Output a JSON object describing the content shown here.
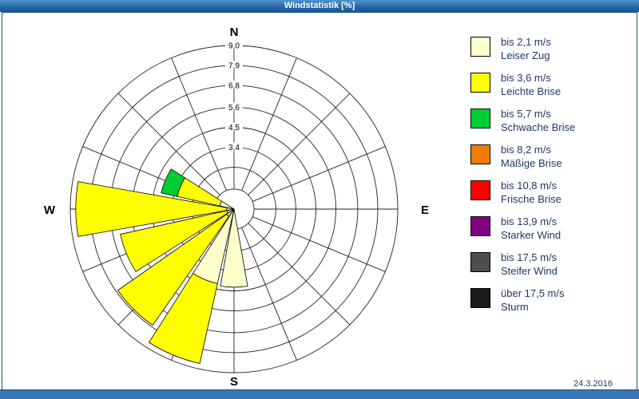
{
  "window": {
    "title": "Windstatistik [%]",
    "date": "24.3.2016"
  },
  "compass": {
    "north": "N",
    "east": "E",
    "south": "S",
    "west": "W"
  },
  "colors": {
    "title_bar": "#2568a8",
    "frame": "#1c4f8c",
    "bottom_bar": "#3a76b1",
    "grid": "#222222",
    "petal_outline": "#000000",
    "text": "#1f3864"
  },
  "legend": {
    "items": [
      {
        "speed": "bis 2,1 m/s",
        "name": "Leiser Zug",
        "color": "#ffffcc"
      },
      {
        "speed": "bis 3,6 m/s",
        "name": "Leichte Brise",
        "color": "#ffff00"
      },
      {
        "speed": "bis 5,7 m/s",
        "name": "Schwache Brise",
        "color": "#00cc33"
      },
      {
        "speed": "bis 8,2 m/s",
        "name": "Mäßige Brise",
        "color": "#f07d00"
      },
      {
        "speed": "bis 10,8 m/s",
        "name": "Frische Brise",
        "color": "#ff0000"
      },
      {
        "speed": "bis 13,9 m/s",
        "name": "Starker Wind",
        "color": "#800080"
      },
      {
        "speed": "bis 17,5 m/s",
        "name": "Steifer Wind",
        "color": "#4d4d4d"
      },
      {
        "speed": "über 17,5 m/s",
        "name": "Sturm",
        "color": "#1a1a1a"
      }
    ]
  },
  "chart_data": {
    "type": "bar",
    "subtype": "windrose-polar-stacked-bar",
    "title": "Windstatistik [%]",
    "unit": "%",
    "max_value": 9.0,
    "ring_values": [
      1.1,
      2.3,
      3.4,
      4.5,
      5.6,
      6.8,
      7.9,
      9.0
    ],
    "ring_labels": [
      "1,1",
      "2,3",
      "3,4",
      "4,5",
      "5,6",
      "6,8",
      "7,9",
      "9,0"
    ],
    "ring_labels_visible_from": 2,
    "sector_count": 16,
    "sector_width_deg": 20,
    "grid": true,
    "legend_position": "right",
    "directions": [
      "N",
      "NNE",
      "NE",
      "ENE",
      "E",
      "ESE",
      "SE",
      "SSE",
      "S",
      "SSW",
      "SW",
      "WSW",
      "W",
      "WNW",
      "NW",
      "NNW"
    ],
    "series": [
      {
        "name": "bis 2,1 m/s (Leiser Zug)",
        "color": "#ffffcc",
        "values": [
          0,
          0,
          0,
          0,
          0,
          0,
          0,
          0,
          4.3,
          4.2,
          0.5,
          0.4,
          0.4,
          0.8,
          0,
          0
        ]
      },
      {
        "name": "bis 3,6 m/s (Leichte Brise)",
        "color": "#ffff00",
        "values": [
          0,
          0,
          0,
          0,
          0,
          0,
          0,
          0,
          0,
          4.5,
          7.3,
          6.0,
          8.3,
          2.4,
          0,
          0
        ]
      },
      {
        "name": "bis 5,7 m/s (Schwache Brise)",
        "color": "#00cc33",
        "values": [
          0,
          0,
          0,
          0,
          0,
          0,
          0,
          0,
          0,
          0,
          0,
          0,
          0,
          0.9,
          0,
          0
        ]
      },
      {
        "name": "bis 8,2 m/s (Mäßige Brise)",
        "color": "#f07d00",
        "values": [
          0,
          0,
          0,
          0,
          0,
          0,
          0,
          0,
          0,
          0,
          0,
          0,
          0,
          0,
          0,
          0
        ]
      },
      {
        "name": "bis 10,8 m/s (Frische Brise)",
        "color": "#ff0000",
        "values": [
          0,
          0,
          0,
          0,
          0,
          0,
          0,
          0,
          0,
          0,
          0,
          0,
          0,
          0,
          0,
          0
        ]
      },
      {
        "name": "bis 13,9 m/s (Starker Wind)",
        "color": "#800080",
        "values": [
          0,
          0,
          0,
          0,
          0,
          0,
          0,
          0,
          0,
          0,
          0,
          0,
          0,
          0,
          0,
          0
        ]
      },
      {
        "name": "bis 17,5 m/s (Steifer Wind)",
        "color": "#4d4d4d",
        "values": [
          0,
          0,
          0,
          0,
          0,
          0,
          0,
          0,
          0,
          0,
          0,
          0,
          0,
          0,
          0,
          0
        ]
      },
      {
        "name": "über 17,5 m/s (Sturm)",
        "color": "#1a1a1a",
        "values": [
          0,
          0,
          0,
          0,
          0,
          0,
          0,
          0,
          0,
          0,
          0,
          0,
          0,
          0,
          0,
          0
        ]
      }
    ]
  }
}
